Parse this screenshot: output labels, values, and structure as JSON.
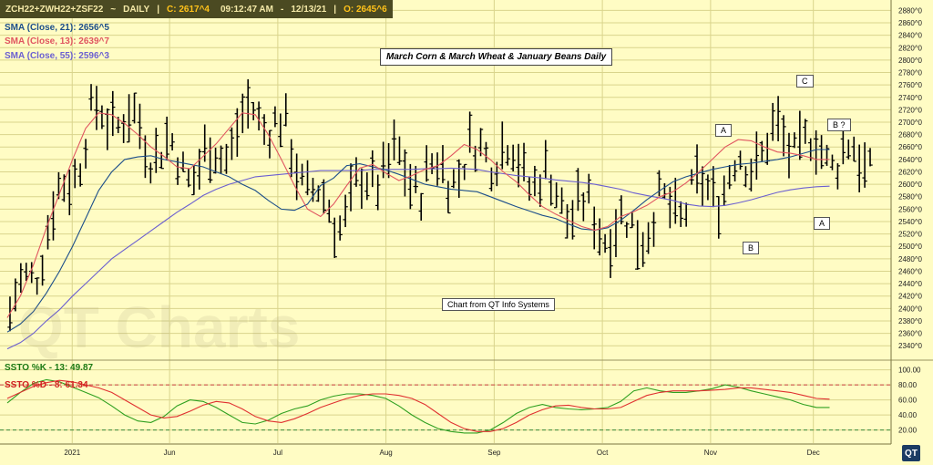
{
  "header": {
    "symbol": "ZCH22+ZWH22+ZSF22",
    "sep1": "~",
    "period": "DAILY",
    "sep2": "|",
    "close": "C: 2617^4",
    "time": "09:12:47 AM",
    "sep3": "-",
    "date": "12/13/21",
    "sep4": "|",
    "open": "O: 2645^6"
  },
  "legend": {
    "sma21": "SMA (Close, 21): 2656^5",
    "sma13": "SMA (Close, 13): 2639^7",
    "sma55": "SMA (Close, 55): 2596^3",
    "ssto_k": "SSTO %K - 13: 49.87",
    "ssto_d": "SSTO %D - 8: 61.34"
  },
  "colors": {
    "background": "#fffcc4",
    "grid": "#d9d48c",
    "bars": "#000000",
    "sma21": "#1c4e8a",
    "sma13": "#e05560",
    "sma55": "#6b5fd0",
    "stoch_k": "#2fa020",
    "stoch_d": "#e03030"
  },
  "annotations": {
    "title": "March Corn & March Wheat & January Beans Daily",
    "source": "Chart from QT Info Systems",
    "watermark": "QT Charts",
    "logo": "QT",
    "wave_labels": [
      "A",
      "B",
      "C",
      "B ?",
      "A"
    ]
  },
  "chart_data": [
    {
      "type": "bar",
      "subtype": "ohlc",
      "title": "March Corn & March Wheat & January Beans Daily",
      "y_tick_labels": [
        "2340^0",
        "2360^0",
        "2380^0",
        "2400^0",
        "2420^0",
        "2440^0",
        "2460^0",
        "2480^0",
        "2500^0",
        "2520^0",
        "2540^0",
        "2560^0",
        "2580^0",
        "2600^0",
        "2620^0",
        "2640^0",
        "2660^0",
        "2680^0",
        "2700^0",
        "2720^0",
        "2740^0",
        "2760^0",
        "2780^0",
        "2800^0",
        "2820^0",
        "2840^0",
        "2860^0",
        "2880^0"
      ],
      "ylim": [
        2330,
        2885
      ],
      "x_tick_labels": [
        "2021",
        "Jun",
        "Jul",
        "Aug",
        "Sep",
        "Oct",
        "Nov",
        "Dec"
      ],
      "x_tick_positions": [
        12,
        30,
        50,
        70,
        90,
        110,
        130,
        149
      ],
      "x_range": [
        0,
        160
      ],
      "grid": true,
      "series": [
        {
          "name": "SMA (Close, 21)",
          "values": [
            2362,
            2375,
            2395,
            2425,
            2460,
            2500,
            2545,
            2590,
            2620,
            2640,
            2644,
            2646,
            2640,
            2636,
            2632,
            2628,
            2620,
            2612,
            2600,
            2590,
            2574,
            2560,
            2558,
            2568,
            2598,
            2610,
            2630,
            2633,
            2628,
            2623,
            2616,
            2608,
            2600,
            2596,
            2592,
            2590,
            2588,
            2580,
            2572,
            2564,
            2557,
            2550,
            2545,
            2536,
            2528,
            2526,
            2530,
            2542,
            2558,
            2575,
            2590,
            2604,
            2612,
            2618,
            2624,
            2628,
            2632,
            2634,
            2637,
            2640,
            2644,
            2650,
            2656,
            2656
          ]
        },
        {
          "name": "SMA (Close, 13)",
          "values": [
            2385,
            2420,
            2470,
            2530,
            2585,
            2640,
            2690,
            2715,
            2712,
            2698,
            2680,
            2660,
            2645,
            2628,
            2625,
            2645,
            2665,
            2690,
            2715,
            2712,
            2680,
            2640,
            2598,
            2560,
            2548,
            2568,
            2598,
            2626,
            2632,
            2618,
            2606,
            2614,
            2624,
            2630,
            2646,
            2664,
            2656,
            2640,
            2620,
            2604,
            2583,
            2564,
            2552,
            2542,
            2532,
            2526,
            2532,
            2548,
            2556,
            2566,
            2580,
            2588,
            2602,
            2620,
            2640,
            2660,
            2672,
            2670,
            2660,
            2652,
            2650,
            2646,
            2640,
            2640
          ]
        },
        {
          "name": "SMA (Close, 55)",
          "values": [
            2335,
            2345,
            2360,
            2380,
            2398,
            2420,
            2440,
            2460,
            2480,
            2495,
            2510,
            2525,
            2540,
            2555,
            2568,
            2582,
            2592,
            2600,
            2606,
            2612,
            2614,
            2616,
            2618,
            2620,
            2622,
            2622,
            2622,
            2622,
            2624,
            2624,
            2624,
            2624,
            2625,
            2625,
            2626,
            2625,
            2624,
            2620,
            2617,
            2614,
            2612,
            2610,
            2607,
            2605,
            2603,
            2600,
            2596,
            2592,
            2586,
            2582,
            2578,
            2574,
            2568,
            2565,
            2564,
            2566,
            2570,
            2575,
            2581,
            2587,
            2591,
            2594,
            2596,
            2597
          ]
        }
      ]
    },
    {
      "type": "line",
      "title": "Slow Stochastic",
      "y_tick_labels": [
        "20.00",
        "40.00",
        "60.00",
        "80.00",
        "100.00"
      ],
      "ylim": [
        5,
        102
      ],
      "reference_lines": [
        80,
        20
      ],
      "x_range": [
        0,
        160
      ],
      "series": [
        {
          "name": "SSTO %K - 13",
          "values": [
            56,
            70,
            82,
            87,
            84,
            77,
            70,
            63,
            52,
            40,
            32,
            30,
            38,
            52,
            60,
            58,
            50,
            40,
            30,
            28,
            33,
            42,
            48,
            52,
            60,
            65,
            68,
            68,
            66,
            62,
            52,
            40,
            30,
            22,
            18,
            16,
            16,
            20,
            30,
            42,
            50,
            54,
            50,
            48,
            47,
            48,
            50,
            58,
            72,
            76,
            72,
            70,
            70,
            72,
            75,
            80,
            77,
            72,
            68,
            64,
            60,
            54,
            50,
            50
          ]
        },
        {
          "name": "SSTO %D - 8",
          "values": [
            62,
            70,
            78,
            83,
            86,
            84,
            80,
            76,
            70,
            60,
            50,
            40,
            36,
            38,
            45,
            53,
            58,
            56,
            48,
            38,
            32,
            30,
            35,
            42,
            50,
            56,
            62,
            66,
            68,
            68,
            66,
            62,
            54,
            42,
            30,
            22,
            18,
            18,
            22,
            30,
            40,
            47,
            52,
            53,
            50,
            48,
            48,
            50,
            58,
            66,
            70,
            72,
            72,
            72,
            73,
            74,
            76,
            76,
            74,
            72,
            70,
            66,
            62,
            61
          ]
        }
      ]
    }
  ]
}
